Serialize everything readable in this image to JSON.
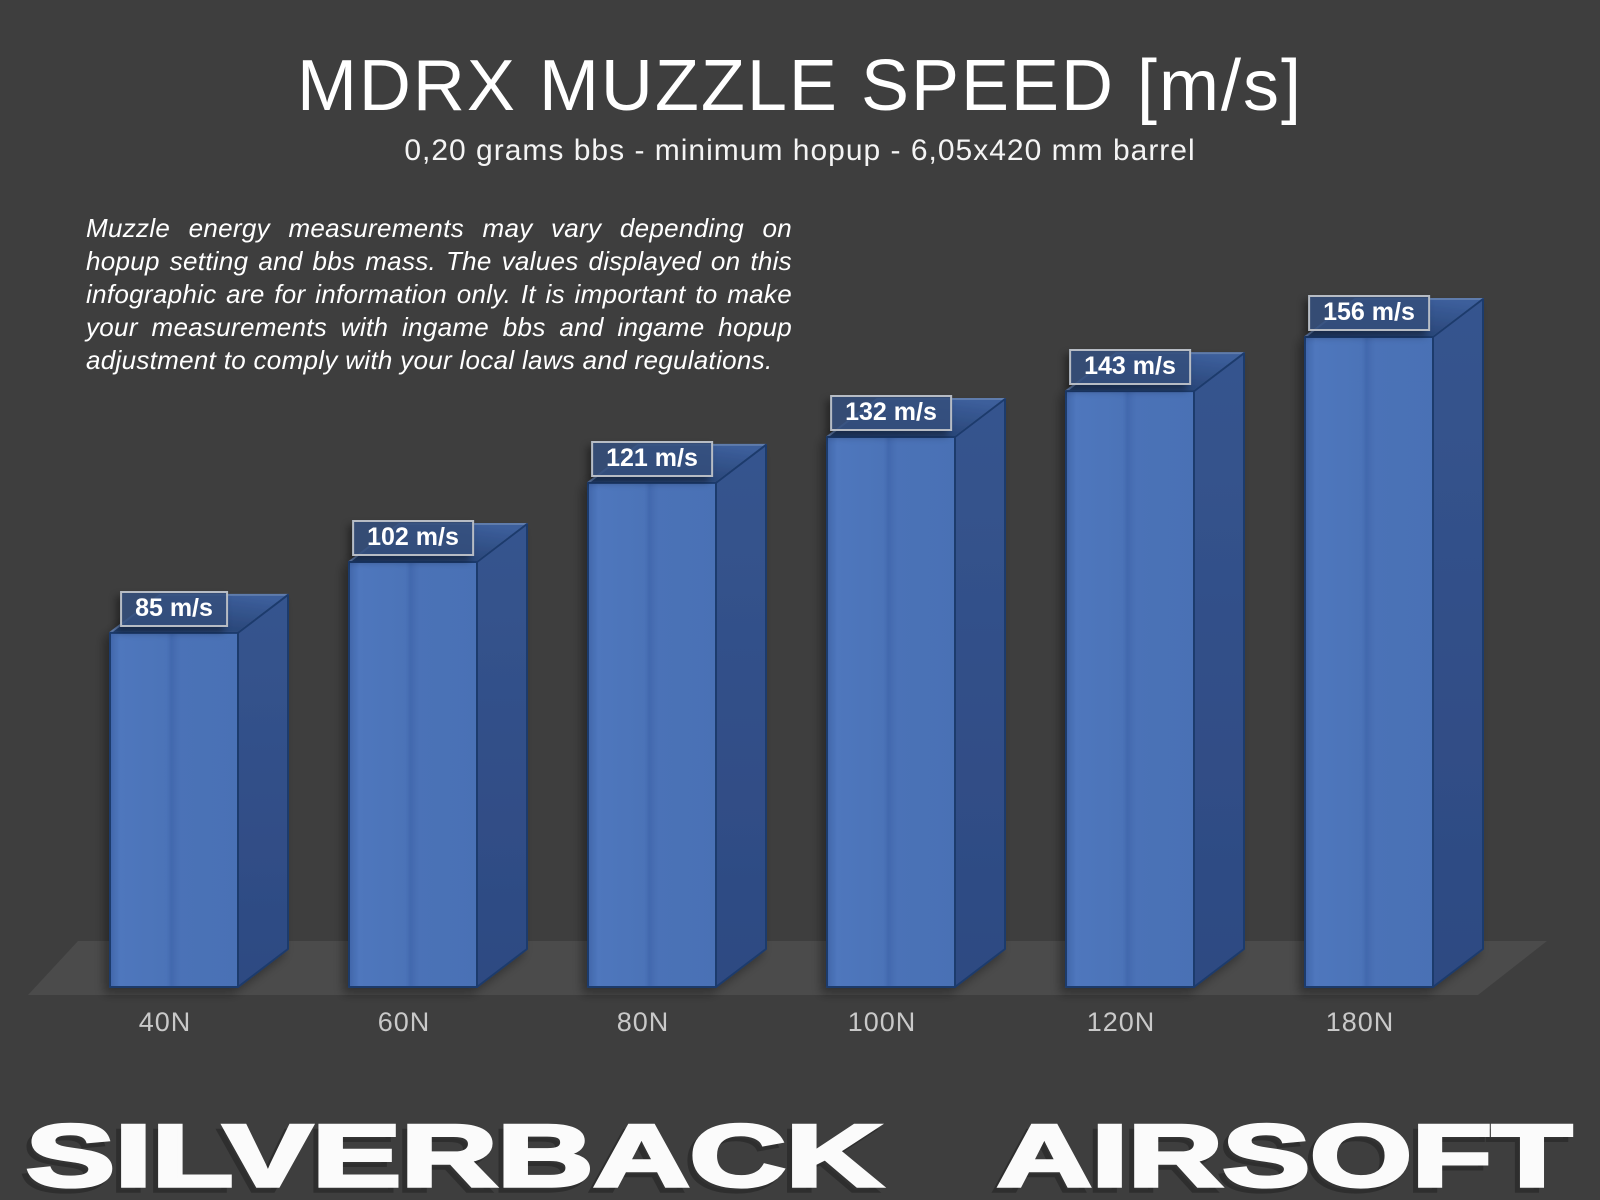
{
  "header": {
    "title": "MDRX MUZZLE SPEED [m/s]",
    "subtitle": "0,20 grams bbs - minimum hopup - 6,05x420 mm barrel"
  },
  "disclaimer": "Muzzle energy measurements may vary depending on hopup setting and bbs mass. The values displayed on this infographic are for information only. It is important to make your measurements with ingame bbs and ingame hopup adjustment to comply with your local laws and regulations.",
  "chart_data": {
    "type": "bar",
    "style": "3d-column",
    "title": "MDRX MUZZLE SPEED [m/s]",
    "subtitle": "0,20 grams bbs - minimum hopup - 6,05x420 mm barrel",
    "categories": [
      "40N",
      "60N",
      "80N",
      "100N",
      "120N",
      "180N"
    ],
    "values": [
      85,
      102,
      121,
      132,
      143,
      156
    ],
    "value_labels": [
      "85 m/s",
      "102 m/s",
      "121 m/s",
      "132 m/s",
      "143 m/s",
      "156 m/s"
    ],
    "unit": "m/s",
    "grid": false,
    "legend": false,
    "colors": {
      "bar_front": "#4a71b5",
      "bar_front_light": "#4f77bd",
      "bar_front_dark": "#4066aa",
      "bar_side": "#33518b",
      "bar_side_dark": "#2d4a82",
      "bar_top_dark": "#233e6c",
      "bar_top_light": "#3c5e9b",
      "bar_edge": "#1e3a6c",
      "top_edge": "#5f7cac",
      "label_box_fill": "rgba(52,78,124,0.88)",
      "label_box_border": "#b7bcc4",
      "background": "#3e3e3e",
      "floor": "#4b4b4b",
      "axis_text": "#c9c9c9",
      "text": "#ffffff"
    }
  },
  "footer": {
    "brand_left": "SILVERBACK",
    "brand_right": "AIRSOFT"
  }
}
